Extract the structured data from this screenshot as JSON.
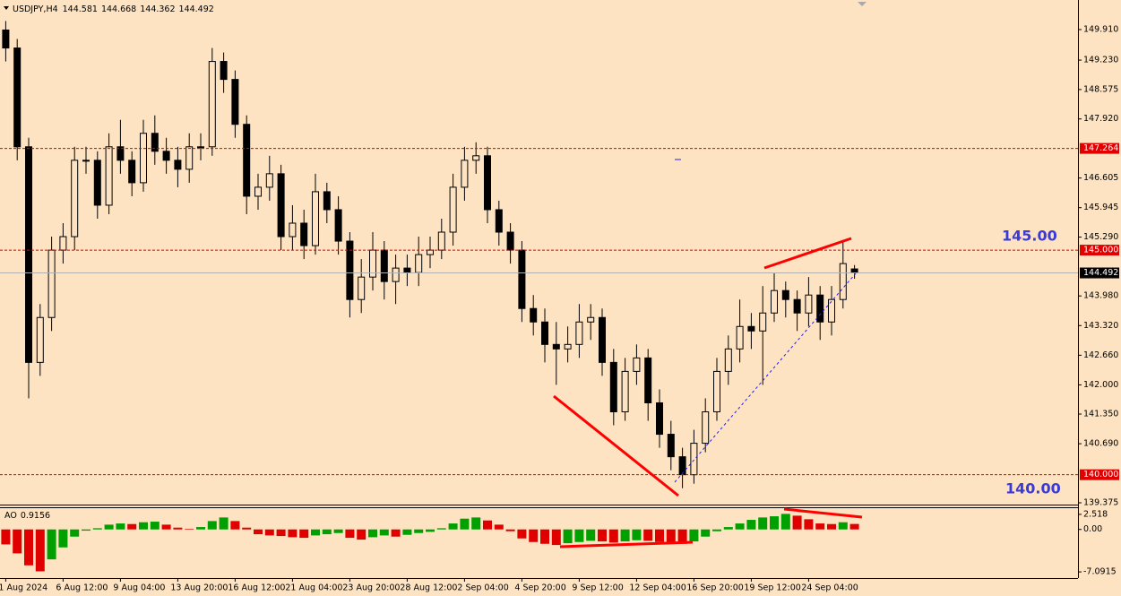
{
  "chart_data": [
    {
      "type": "candlestick",
      "title": "USDJPY,H4",
      "x": [
        "1 Aug 2024",
        null,
        null,
        null,
        null,
        "6 Aug 12:00",
        null,
        null,
        null,
        null,
        "9 Aug 04:00",
        null,
        null,
        null,
        null,
        "13 Aug 20:00",
        null,
        null,
        null,
        null,
        "16 Aug 12:00",
        null,
        null,
        null,
        null,
        "21 Aug 04:00",
        null,
        null,
        null,
        null,
        "23 Aug 20:00",
        null,
        null,
        null,
        null,
        "28 Aug 12:00",
        null,
        null,
        null,
        null,
        "2 Sep 04:00",
        null,
        null,
        null,
        null,
        "4 Sep 20:00",
        null,
        null,
        null,
        null,
        "9 Sep 12:00",
        null,
        null,
        null,
        null,
        "12 Sep 04:00",
        null,
        null,
        null,
        null,
        "16 Sep 20:00",
        null,
        null,
        null,
        null,
        "19 Sep 12:00",
        null,
        null,
        null,
        null,
        "24 Sep 04:00",
        null,
        null,
        null,
        null
      ],
      "open": [
        149.9,
        149.5,
        147.3,
        142.5,
        143.5,
        145.0,
        145.3,
        147.0,
        147.0,
        146.0,
        147.3,
        147.0,
        146.5,
        147.6,
        147.2,
        147.0,
        146.8,
        147.3,
        147.3,
        149.2,
        148.8,
        147.8,
        146.2,
        146.4,
        146.7,
        145.3,
        145.6,
        145.1,
        146.3,
        145.9,
        145.2,
        143.9,
        144.4,
        145.0,
        144.3,
        144.6,
        144.5,
        144.9,
        145.0,
        145.4,
        146.4,
        147.0,
        147.1,
        145.9,
        145.4,
        145.0,
        143.7,
        143.4,
        142.9,
        142.8,
        142.9,
        143.4,
        143.5,
        142.5,
        141.4,
        142.3,
        142.6,
        141.6,
        140.9,
        140.4,
        140.0,
        140.7,
        141.4,
        142.3,
        142.8,
        143.3,
        143.2,
        143.6,
        144.1,
        143.9,
        143.6,
        144.0,
        143.4,
        143.9,
        144.581
      ],
      "high": [
        150.1,
        149.7,
        147.5,
        143.8,
        145.3,
        145.6,
        147.3,
        147.3,
        147.2,
        147.6,
        147.9,
        147.2,
        147.9,
        148.0,
        147.5,
        147.3,
        147.6,
        147.6,
        149.5,
        149.4,
        149.0,
        148.0,
        146.7,
        147.1,
        146.9,
        146.0,
        145.9,
        146.7,
        146.5,
        146.2,
        145.4,
        144.8,
        145.4,
        145.2,
        144.9,
        144.9,
        145.3,
        145.3,
        145.7,
        146.7,
        147.3,
        147.4,
        147.3,
        146.1,
        145.6,
        145.2,
        144.0,
        143.7,
        143.4,
        143.3,
        143.8,
        143.8,
        143.7,
        142.8,
        142.6,
        142.9,
        142.8,
        141.9,
        141.2,
        140.6,
        141.0,
        141.7,
        142.6,
        143.1,
        143.9,
        143.6,
        144.2,
        144.5,
        144.3,
        144.1,
        144.4,
        144.2,
        144.2,
        145.2,
        144.668
      ],
      "low": [
        149.2,
        147.0,
        141.7,
        142.2,
        143.2,
        144.7,
        145.0,
        146.7,
        145.7,
        145.8,
        146.7,
        146.2,
        146.3,
        146.9,
        146.7,
        146.4,
        146.5,
        147.0,
        147.1,
        148.5,
        147.5,
        145.8,
        145.9,
        146.1,
        145.0,
        145.0,
        144.8,
        144.9,
        145.6,
        144.9,
        143.5,
        143.6,
        144.1,
        143.9,
        143.8,
        144.2,
        144.2,
        144.6,
        144.8,
        145.1,
        146.1,
        146.7,
        145.6,
        145.1,
        144.7,
        143.4,
        143.1,
        142.5,
        142.0,
        142.5,
        142.6,
        143.0,
        142.2,
        141.1,
        141.2,
        142.0,
        141.2,
        140.6,
        140.1,
        139.7,
        139.8,
        140.5,
        141.2,
        142.0,
        142.5,
        142.8,
        142.0,
        143.4,
        143.5,
        143.2,
        143.3,
        143.0,
        143.1,
        143.7,
        144.362
      ],
      "close": [
        149.5,
        147.3,
        142.5,
        143.5,
        145.0,
        145.3,
        147.0,
        147.0,
        146.0,
        147.3,
        147.0,
        146.5,
        147.6,
        147.2,
        147.0,
        146.8,
        147.3,
        147.3,
        149.2,
        148.8,
        147.8,
        146.2,
        146.4,
        146.7,
        145.3,
        145.6,
        145.1,
        146.3,
        145.9,
        145.2,
        143.9,
        144.4,
        145.0,
        144.3,
        144.6,
        144.5,
        144.9,
        145.0,
        145.4,
        146.4,
        147.0,
        147.1,
        145.9,
        145.4,
        145.0,
        143.7,
        143.4,
        142.9,
        142.8,
        142.9,
        143.4,
        143.5,
        142.5,
        141.4,
        142.3,
        142.6,
        141.6,
        140.9,
        140.4,
        140.0,
        140.7,
        141.4,
        142.3,
        142.8,
        143.3,
        143.2,
        143.6,
        144.1,
        143.9,
        143.6,
        144.0,
        143.4,
        143.9,
        144.7,
        144.492
      ],
      "color": "#000000",
      "ylim": [
        139.335,
        150.568
      ],
      "yticks": [
        {
          "value": 149.91,
          "label": "149.910"
        },
        {
          "value": 149.23,
          "label": "149.230"
        },
        148.575,
        {
          "value": 147.92,
          "label": "147.920"
        },
        146.605,
        145.945,
        {
          "value": 145.29,
          "label": "145.290"
        },
        {
          "value": 143.98,
          "label": "143.980"
        },
        {
          "value": 143.32,
          "label": "143.320"
        },
        {
          "value": 142.66,
          "label": "142.660"
        },
        {
          "value": 142.0,
          "label": "142.000"
        },
        {
          "value": 141.35,
          "label": "141.350"
        },
        {
          "value": 140.69,
          "label": "140.690"
        },
        139.375
      ],
      "price_lines": [
        {
          "value": 147.264,
          "color": "#e00000",
          "style": "dashed"
        },
        {
          "value": 145.0,
          "label": "145.000",
          "color": "#e00000",
          "style": "dashed"
        },
        {
          "value": 140.0,
          "label": "140.000",
          "color": "#e00000",
          "style": "dashed"
        },
        {
          "value": 144.492,
          "color": "#b0b0b0",
          "style": "solid"
        }
      ],
      "annotations": [
        "145.00",
        "140.00"
      ]
    },
    {
      "type": "bar",
      "series": [
        {
          "name": "AO",
          "up_color": "#00a000",
          "down_color": "#e00000",
          "values": [
            -2.5,
            -4.0,
            -6.0,
            -7.0,
            -5.0,
            -3.0,
            -1.2,
            -0.2,
            0.2,
            0.8,
            1.0,
            0.9,
            1.2,
            1.3,
            0.8,
            0.3,
            0.1,
            0.4,
            1.4,
            2.0,
            1.4,
            0.3,
            -0.8,
            -1.0,
            -1.1,
            -1.3,
            -1.4,
            -1.0,
            -0.8,
            -0.6,
            -1.4,
            -1.7,
            -1.3,
            -1.0,
            -1.2,
            -0.9,
            -0.6,
            -0.4,
            0.2,
            1.0,
            1.8,
            2.0,
            1.5,
            0.8,
            -0.3,
            -1.5,
            -2.1,
            -2.4,
            -2.6,
            -2.3,
            -2.1,
            -1.9,
            -2.0,
            -2.2,
            -2.0,
            -1.8,
            -1.9,
            -2.1,
            -2.3,
            -2.4,
            -2.0,
            -1.2,
            -0.3,
            0.4,
            1.0,
            1.6,
            2.0,
            2.2,
            2.6,
            2.3,
            1.7,
            1.0,
            0.9,
            1.2,
            0.9156
          ]
        }
      ],
      "ylim": [
        -8.126,
        3.553
      ],
      "yticks": [
        2.518,
        {
          "value": 0,
          "label": "0.00"
        },
        -7.0915
      ]
    }
  ]
}
